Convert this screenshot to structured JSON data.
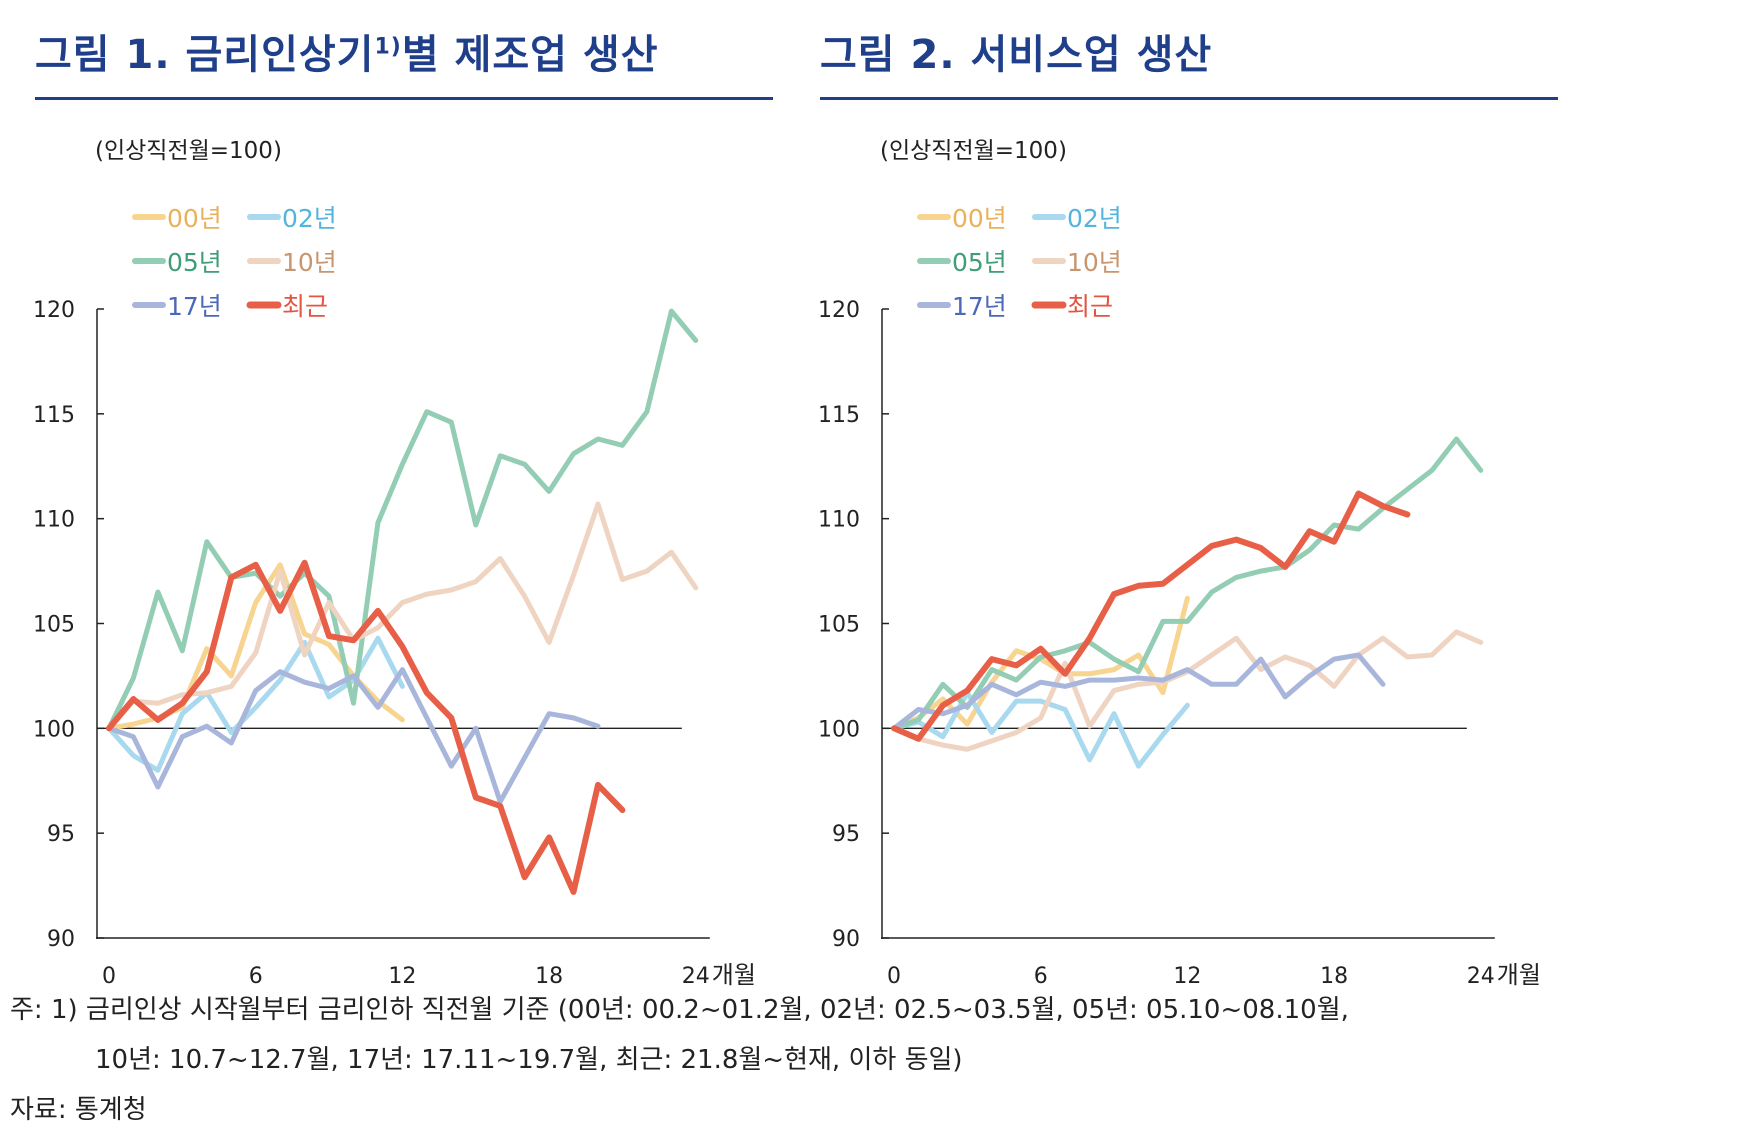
{
  "page": {
    "footnote_line1": "주: 1) 금리인상 시작월부터 금리인하 직전월 기준 (00년: 00.2~01.2월, 02년: 02.5~03.5월, 05년: 05.10~08.10월,",
    "footnote_line2": "10년: 10.7~12.7월, 17년: 17.11~19.7월, 최근: 21.8월~현재, 이하 동일)",
    "source": "자료: 통계청"
  },
  "chart_data": [
    {
      "type": "line",
      "title_main": "그림 1. 금리인상기",
      "title_sup": "1)",
      "title_tail": "별 제조업 생산",
      "unit_label": "(인상직전월=100)",
      "x_unit": "개월",
      "xlim": [
        0,
        24
      ],
      "ylim": [
        90,
        120
      ],
      "x_ticks": [
        0,
        6,
        12,
        18,
        24
      ],
      "y_ticks": [
        90,
        95,
        100,
        105,
        110,
        115,
        120
      ],
      "reference_y": 100,
      "series": [
        {
          "name": "00년",
          "color": "#f7d48f",
          "width": 5,
          "values": [
            100,
            100.2,
            100.5,
            101,
            103.8,
            102.5,
            106,
            107.8,
            104.5,
            104,
            102.5,
            101.3,
            100.4
          ]
        },
        {
          "name": "02년",
          "color": "#a9d9ee",
          "width": 5,
          "values": [
            100,
            98.7,
            98,
            100.7,
            101.7,
            99.8,
            101,
            102.3,
            104.1,
            101.5,
            102.3,
            104.3,
            102
          ]
        },
        {
          "name": "05년",
          "color": "#93cdb3",
          "width": 5,
          "values": [
            100,
            102.4,
            106.5,
            103.7,
            108.9,
            107.2,
            107.4,
            106.3,
            107.4,
            106.3,
            101.2,
            109.8,
            112.6,
            115.1,
            114.6,
            109.7,
            113,
            112.6,
            111.3,
            113.1,
            113.8,
            113.5,
            115.1,
            119.9,
            118.5
          ]
        },
        {
          "name": "10년",
          "color": "#efd4c2",
          "width": 5,
          "values": [
            100,
            101.3,
            101.2,
            101.6,
            101.7,
            102,
            103.6,
            107.5,
            103.5,
            106,
            104.2,
            104.8,
            106,
            106.4,
            106.6,
            107,
            108.1,
            106.3,
            104.1,
            107.3,
            110.7,
            107.1,
            107.5,
            108.4,
            106.7
          ]
        },
        {
          "name": "17년",
          "color": "#a9b6dc",
          "width": 5,
          "values": [
            100,
            99.6,
            97.2,
            99.6,
            100.1,
            99.3,
            101.8,
            102.7,
            102.2,
            101.9,
            102.5,
            101,
            102.8,
            100.5,
            98.2,
            100,
            96.5,
            98.6,
            100.7,
            100.5,
            100.1
          ]
        },
        {
          "name": "최근",
          "color": "#e85f48",
          "width": 6,
          "values": [
            100,
            101.4,
            100.4,
            101.2,
            102.7,
            107.2,
            107.8,
            105.6,
            107.9,
            104.4,
            104.2,
            105.6,
            103.9,
            101.7,
            100.5,
            96.7,
            96.3,
            92.9,
            94.8,
            92.2,
            97.3,
            96.1
          ]
        }
      ]
    },
    {
      "type": "line",
      "title_main": "그림 2. 서비스업 생산",
      "title_sup": "",
      "title_tail": "",
      "unit_label": "(인상직전월=100)",
      "x_unit": "개월",
      "xlim": [
        0,
        24
      ],
      "ylim": [
        90,
        120
      ],
      "x_ticks": [
        0,
        6,
        12,
        18,
        24
      ],
      "y_ticks": [
        90,
        95,
        100,
        105,
        110,
        115,
        120
      ],
      "reference_y": 100,
      "series": [
        {
          "name": "00년",
          "color": "#f7d48f",
          "width": 5,
          "values": [
            100,
            100.5,
            101.4,
            100.2,
            102.2,
            103.7,
            103.3,
            102.6,
            102.6,
            102.8,
            103.5,
            101.7,
            106.2
          ]
        },
        {
          "name": "02년",
          "color": "#a9d9ee",
          "width": 5,
          "values": [
            100,
            100.3,
            99.6,
            101.7,
            99.8,
            101.3,
            101.3,
            100.9,
            98.5,
            100.7,
            98.2,
            99.7,
            101.1
          ]
        },
        {
          "name": "05년",
          "color": "#93cdb3",
          "width": 5,
          "values": [
            100,
            100.4,
            102.1,
            101,
            102.8,
            102.3,
            103.4,
            103.7,
            104.1,
            103.3,
            102.7,
            105.1,
            105.1,
            106.5,
            107.2,
            107.5,
            107.7,
            108.5,
            109.7,
            109.5,
            110.5,
            111.4,
            112.3,
            113.8,
            112.3
          ]
        },
        {
          "name": "10년",
          "color": "#efd4c2",
          "width": 5,
          "values": [
            100,
            99.5,
            99.2,
            99,
            99.4,
            99.8,
            100.5,
            103.1,
            100.1,
            101.8,
            102.1,
            102.2,
            102.7,
            103.5,
            104.3,
            102.8,
            103.4,
            103,
            102,
            103.5,
            104.3,
            103.4,
            103.5,
            104.6,
            104.1
          ]
        },
        {
          "name": "17년",
          "color": "#a9b6dc",
          "width": 5,
          "values": [
            100,
            100.9,
            100.7,
            101.1,
            102.1,
            101.6,
            102.2,
            102,
            102.3,
            102.3,
            102.4,
            102.3,
            102.8,
            102.1,
            102.1,
            103.3,
            101.5,
            102.5,
            103.3,
            103.5,
            102.1
          ]
        },
        {
          "name": "최근",
          "color": "#e85f48",
          "width": 6,
          "values": [
            100,
            99.5,
            101.1,
            101.8,
            103.3,
            103,
            103.8,
            102.6,
            104.3,
            106.4,
            106.8,
            106.9,
            107.8,
            108.7,
            109,
            108.6,
            107.7,
            109.4,
            108.9,
            111.2,
            110.6,
            110.2
          ]
        }
      ]
    }
  ]
}
